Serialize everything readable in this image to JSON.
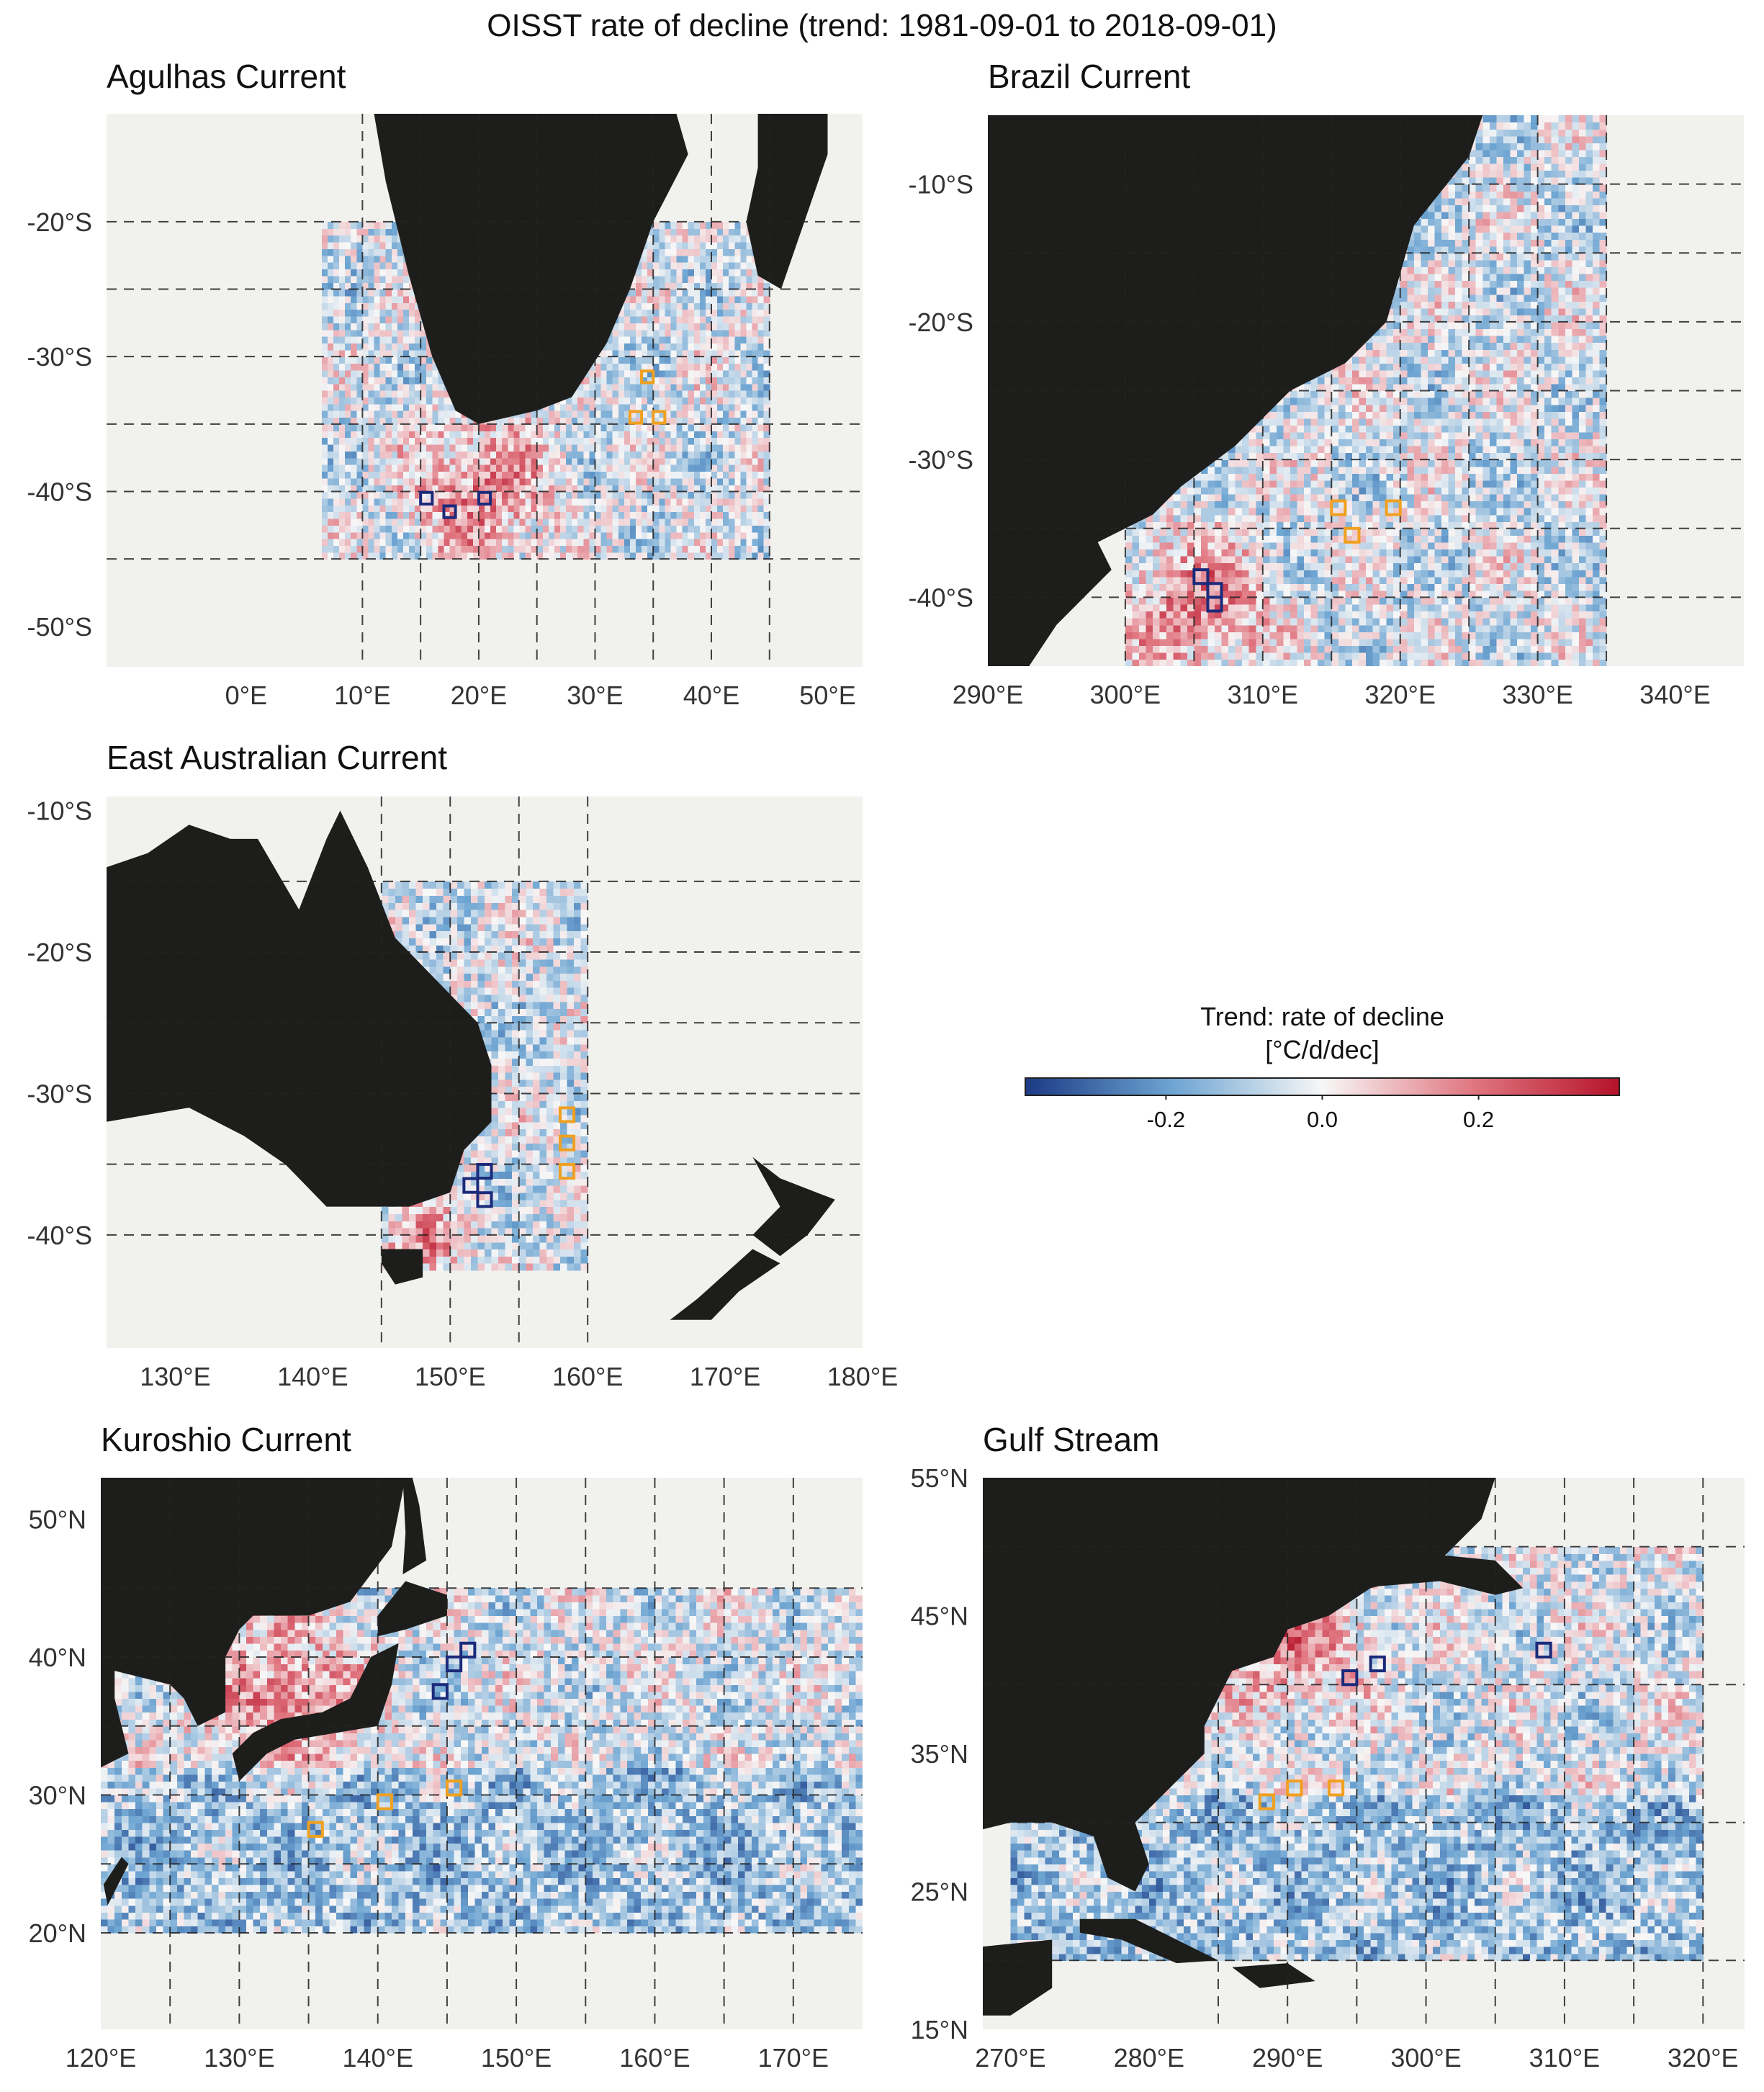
{
  "figure_title": "OISST rate of decline (trend: 1981-09-01 to 2018-09-01)",
  "colors": {
    "land": "#1d1e1b",
    "ocean": "#f1f1ed",
    "grid": "#222222",
    "box_decline_fast": "#1b2a7a",
    "box_decline_slow": "#f0a020",
    "cmap_neg": "#1b3a85",
    "cmap_mid": "#f7f7f7",
    "cmap_pos": "#b5122a"
  },
  "colorbar": {
    "title_line1": "Trend: rate of decline",
    "title_line2": "[°C/d/dec]",
    "vmin": -0.38,
    "vmax": 0.38,
    "ticks": [
      "-0.2",
      "0.0",
      "0.2"
    ],
    "tick_values": [
      -0.2,
      0.0,
      0.2
    ]
  },
  "chart_data": [
    {
      "type": "heatmap",
      "title": "Agulhas Current",
      "lon_range": [
        -12,
        53
      ],
      "lat_range": [
        -53,
        -12
      ],
      "xticks": [
        "0°E",
        "10°E",
        "20°E",
        "30°E",
        "40°E",
        "50°E"
      ],
      "xtick_values": [
        0,
        10,
        20,
        30,
        40,
        50
      ],
      "yticks": [
        "-20°S",
        "-30°S",
        "-40°S",
        "-50°S"
      ],
      "ytick_values": [
        -20,
        -30,
        -40,
        -50
      ],
      "grid_lons": [
        10,
        15,
        20,
        25,
        30,
        35,
        40,
        45
      ],
      "grid_lats": [
        -20,
        -25,
        -30,
        -35,
        -40,
        -45
      ],
      "data_region": {
        "lon": [
          6.5,
          45
        ],
        "lat": [
          -45,
          -20
        ]
      },
      "warm_core": {
        "lon": 20,
        "lat": -40,
        "radius": 9
      },
      "boxes_dark": [
        [
          15.5,
          -40.5
        ],
        [
          17.5,
          -41.5
        ],
        [
          20.5,
          -40.5
        ]
      ],
      "boxes_orange": [
        [
          34.5,
          -31.5
        ],
        [
          33.5,
          -34.5
        ],
        [
          35.5,
          -34.5
        ]
      ]
    },
    {
      "type": "heatmap",
      "title": "Brazil Current",
      "lon_range": [
        290,
        345
      ],
      "lat_range": [
        -45,
        -5
      ],
      "xticks": [
        "290°E",
        "300°E",
        "310°E",
        "320°E",
        "330°E",
        "340°E"
      ],
      "xtick_values": [
        290,
        300,
        310,
        320,
        330,
        340
      ],
      "yticks": [
        "-10°S",
        "-20°S",
        "-30°S",
        "-40°S"
      ],
      "ytick_values": [
        -10,
        -20,
        -30,
        -40
      ],
      "grid_lons": [
        300,
        305,
        310,
        315,
        320,
        325,
        330,
        335
      ],
      "grid_lats": [
        -10,
        -15,
        -20,
        -25,
        -30,
        -35,
        -40
      ],
      "data_region": {
        "lon": [
          300,
          335
        ],
        "lat": [
          -45,
          -5
        ]
      },
      "warm_core": {
        "lon": 305,
        "lat": -41,
        "radius": 8
      },
      "boxes_dark": [
        [
          305.5,
          -38.5
        ],
        [
          306.5,
          -39.5
        ],
        [
          306.5,
          -40.5
        ]
      ],
      "boxes_orange": [
        [
          315.5,
          -33.5
        ],
        [
          319.5,
          -33.5
        ],
        [
          316.5,
          -35.5
        ]
      ]
    },
    {
      "type": "heatmap",
      "title": "East Australian Current",
      "lon_range": [
        125,
        180
      ],
      "lat_range": [
        -48,
        -9
      ],
      "xticks": [
        "130°E",
        "140°E",
        "150°E",
        "160°E",
        "170°E",
        "180°E"
      ],
      "xtick_values": [
        130,
        140,
        150,
        160,
        170,
        180
      ],
      "yticks": [
        "-10°S",
        "-20°S",
        "-30°S",
        "-40°S"
      ],
      "ytick_values": [
        -10,
        -20,
        -30,
        -40
      ],
      "grid_lons": [
        145,
        150,
        155,
        160
      ],
      "grid_lats": [
        -15,
        -20,
        -25,
        -30,
        -35,
        -40
      ],
      "data_region": {
        "lon": [
          145,
          160
        ],
        "lat": [
          -42.5,
          -15
        ]
      },
      "warm_core": {
        "lon": 148,
        "lat": -41,
        "radius": 4
      },
      "boxes_dark": [
        [
          152.5,
          -35.5
        ],
        [
          151.5,
          -36.5
        ],
        [
          152.5,
          -37.5
        ]
      ],
      "boxes_orange": [
        [
          158.5,
          -31.5
        ],
        [
          158.5,
          -33.5
        ],
        [
          158.5,
          -35.5
        ]
      ]
    },
    {
      "type": "heatmap",
      "title": "Kuroshio Current",
      "lon_range": [
        120,
        175
      ],
      "lat_range": [
        13,
        53
      ],
      "xticks": [
        "120°E",
        "130°E",
        "140°E",
        "150°E",
        "160°E",
        "170°E"
      ],
      "xtick_values": [
        120,
        130,
        140,
        150,
        160,
        170
      ],
      "yticks": [
        "20°N",
        "30°N",
        "40°N",
        "50°N"
      ],
      "ytick_values": [
        20,
        30,
        40,
        50
      ],
      "grid_lons": [
        125,
        130,
        135,
        140,
        145,
        150,
        155,
        160,
        165,
        170
      ],
      "grid_lats": [
        20,
        25,
        30,
        35,
        40,
        45
      ],
      "data_region": {
        "lon": [
          120,
          175
        ],
        "lat": [
          20,
          45
        ]
      },
      "warm_core": {
        "lon": 133,
        "lat": 37,
        "radius": 9
      },
      "boxes_dark": [
        [
          144.5,
          37.5
        ],
        [
          145.5,
          39.5
        ],
        [
          146.5,
          40.5
        ]
      ],
      "boxes_orange": [
        [
          135.5,
          27.5
        ],
        [
          140.5,
          29.5
        ],
        [
          145.5,
          30.5
        ]
      ]
    },
    {
      "type": "heatmap",
      "title": "Gulf Stream",
      "lon_range": [
        268,
        323
      ],
      "lat_range": [
        15,
        55
      ],
      "xticks": [
        "270°E",
        "280°E",
        "290°E",
        "300°E",
        "310°E",
        "320°E"
      ],
      "xtick_values": [
        270,
        280,
        290,
        300,
        310,
        320
      ],
      "yticks": [
        "15°N",
        "25°N",
        "35°N",
        "45°N",
        "55°N"
      ],
      "ytick_values": [
        15,
        25,
        35,
        45,
        55
      ],
      "grid_lons": [
        285,
        290,
        295,
        300,
        305,
        310,
        315,
        320
      ],
      "grid_lats": [
        20,
        30,
        40,
        50
      ],
      "data_region": {
        "lon": [
          270,
          320
        ],
        "lat": [
          20,
          50
        ]
      },
      "warm_core": {
        "lon": 290,
        "lat": 43,
        "radius": 8
      },
      "boxes_dark": [
        [
          294.5,
          40.5
        ],
        [
          296.5,
          41.5
        ],
        [
          308.5,
          42.5
        ]
      ],
      "boxes_orange": [
        [
          288.5,
          31.5
        ],
        [
          290.5,
          32.5
        ],
        [
          293.5,
          32.5
        ]
      ]
    }
  ]
}
